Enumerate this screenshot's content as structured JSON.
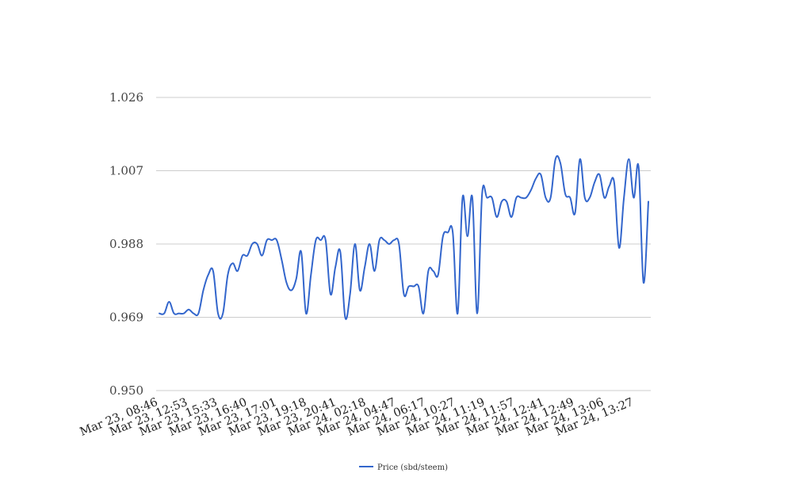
{
  "chart_data": {
    "type": "line",
    "title": "",
    "xlabel": "",
    "ylabel": "",
    "ylim": [
      0.95,
      1.026
    ],
    "y_ticks": [
      "0.950",
      "0.969",
      "0.988",
      "1.007",
      "1.026"
    ],
    "grid": true,
    "legend_position": "bottom",
    "x_tick_labels": [
      "Mar 23, 08:46",
      "Mar 23, 12:53",
      "Mar 23, 15:33",
      "Mar 23, 16:40",
      "Mar 23, 17:01",
      "Mar 23, 19:18",
      "Mar 23, 20:41",
      "Mar 24, 02:18",
      "Mar 24, 04:47",
      "Mar 24, 06:17",
      "Mar 24, 10:27",
      "Mar 24, 11:19",
      "Mar 24, 11:57",
      "Mar 24, 12:41",
      "Mar 24, 12:49",
      "Mar 24, 13:06",
      "Mar 24, 13:27"
    ],
    "series": [
      {
        "name": "Price (sbd/steem)",
        "color": "#3366cc",
        "values": [
          0.97,
          0.97,
          0.973,
          0.97,
          0.97,
          0.97,
          0.971,
          0.97,
          0.97,
          0.976,
          0.98,
          0.981,
          0.97,
          0.97,
          0.98,
          0.983,
          0.981,
          0.985,
          0.985,
          0.988,
          0.988,
          0.985,
          0.989,
          0.989,
          0.989,
          0.984,
          0.978,
          0.976,
          0.979,
          0.986,
          0.97,
          0.98,
          0.989,
          0.989,
          0.989,
          0.975,
          0.982,
          0.986,
          0.969,
          0.975,
          0.988,
          0.976,
          0.982,
          0.988,
          0.981,
          0.989,
          0.989,
          0.988,
          0.989,
          0.988,
          0.975,
          0.977,
          0.977,
          0.977,
          0.97,
          0.981,
          0.981,
          0.98,
          0.99,
          0.991,
          0.991,
          0.97,
          1.0,
          0.99,
          1.0,
          0.97,
          1.001,
          1.0,
          1.0,
          0.995,
          0.999,
          0.999,
          0.995,
          1.0,
          1.0,
          1.0,
          1.002,
          1.005,
          1.006,
          1.0,
          1.0,
          1.01,
          1.009,
          1.001,
          1.0,
          0.996,
          1.01,
          1.0,
          1.0,
          1.004,
          1.006,
          1.0,
          1.003,
          1.004,
          0.987,
          1.0,
          1.01,
          1.0,
          1.008,
          0.978,
          0.999
        ]
      }
    ]
  }
}
